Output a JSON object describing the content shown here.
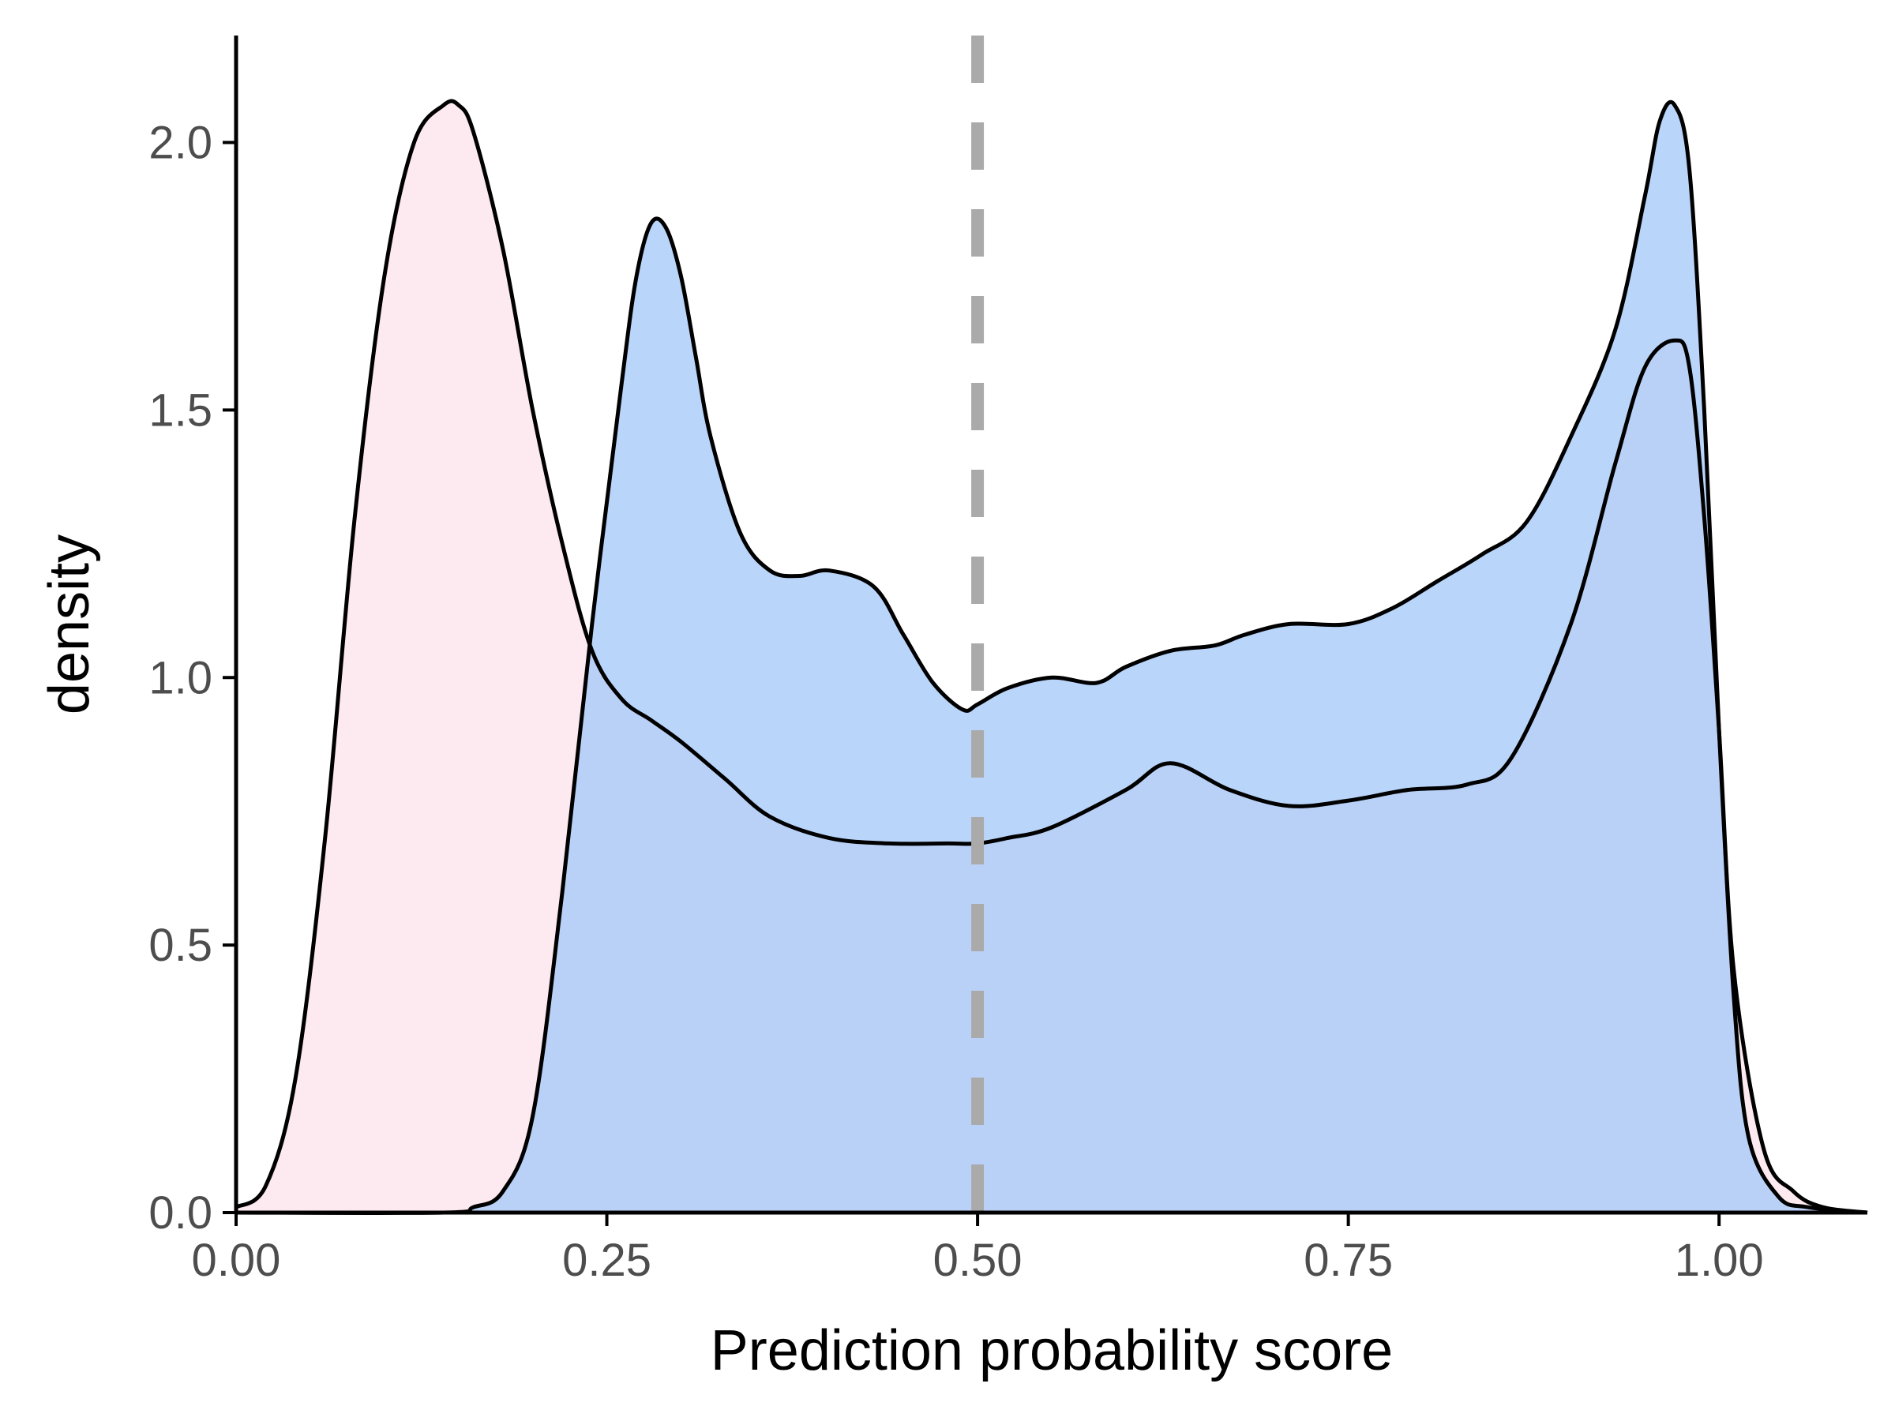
{
  "chart_data": {
    "type": "area",
    "title": "",
    "xlabel": "Prediction probability score",
    "ylabel": "density",
    "xlim": [
      0,
      1.1
    ],
    "ylim": [
      0,
      2.2
    ],
    "x_ticks": [
      0,
      0.25,
      0.5,
      0.75,
      1.0
    ],
    "x_tick_labels": [
      "0.00",
      "0.25",
      "0.50",
      "0.75",
      "1.00"
    ],
    "y_ticks": [
      0,
      0.5,
      1.0,
      1.5,
      2.0
    ],
    "y_tick_labels": [
      "0.0",
      "0.5",
      "1.0",
      "1.5",
      "2.0"
    ],
    "grid": false,
    "legend": "none",
    "reference_line": {
      "x": 0.5,
      "style": "dashed",
      "color": "#aaaaaa"
    },
    "series": [
      {
        "fill": "#fce4ec",
        "stroke": "#000000",
        "x": [
          0.0,
          0.02,
          0.04,
          0.06,
          0.08,
          0.1,
          0.12,
          0.14,
          0.15,
          0.16,
          0.18,
          0.2,
          0.22,
          0.24,
          0.26,
          0.28,
          0.3,
          0.33,
          0.36,
          0.4,
          0.44,
          0.48,
          0.5,
          0.52,
          0.55,
          0.6,
          0.63,
          0.67,
          0.71,
          0.75,
          0.79,
          0.83,
          0.86,
          0.9,
          0.93,
          0.95,
          0.97,
          0.98,
          0.99,
          1.0,
          1.01,
          1.03,
          1.05,
          1.07,
          1.1
        ],
        "y": [
          0.01,
          0.05,
          0.25,
          0.7,
          1.3,
          1.75,
          2.0,
          2.07,
          2.07,
          2.02,
          1.8,
          1.5,
          1.25,
          1.05,
          0.96,
          0.92,
          0.88,
          0.81,
          0.74,
          0.7,
          0.69,
          0.69,
          0.69,
          0.7,
          0.72,
          0.79,
          0.84,
          0.79,
          0.76,
          0.77,
          0.79,
          0.8,
          0.85,
          1.1,
          1.4,
          1.58,
          1.63,
          1.58,
          1.3,
          0.9,
          0.45,
          0.12,
          0.04,
          0.01,
          0.0
        ]
      },
      {
        "fill": "#a7c9f8",
        "stroke": "#000000",
        "x": [
          0.0,
          0.14,
          0.16,
          0.18,
          0.2,
          0.22,
          0.24,
          0.26,
          0.27,
          0.28,
          0.29,
          0.3,
          0.31,
          0.32,
          0.34,
          0.36,
          0.38,
          0.4,
          0.43,
          0.45,
          0.47,
          0.49,
          0.5,
          0.52,
          0.55,
          0.58,
          0.6,
          0.63,
          0.66,
          0.68,
          0.71,
          0.75,
          0.78,
          0.81,
          0.84,
          0.87,
          0.9,
          0.93,
          0.95,
          0.96,
          0.97,
          0.98,
          0.99,
          1.0,
          1.01,
          1.02,
          1.04,
          1.06,
          1.1
        ],
        "y": [
          0.0,
          0.0,
          0.01,
          0.04,
          0.18,
          0.6,
          1.1,
          1.55,
          1.75,
          1.85,
          1.84,
          1.75,
          1.6,
          1.45,
          1.27,
          1.2,
          1.19,
          1.2,
          1.17,
          1.08,
          0.99,
          0.94,
          0.95,
          0.98,
          1.0,
          0.99,
          1.02,
          1.05,
          1.06,
          1.08,
          1.1,
          1.1,
          1.13,
          1.18,
          1.23,
          1.29,
          1.45,
          1.65,
          1.9,
          2.04,
          2.07,
          1.95,
          1.5,
          0.9,
          0.4,
          0.14,
          0.03,
          0.01,
          0.0
        ]
      }
    ]
  }
}
